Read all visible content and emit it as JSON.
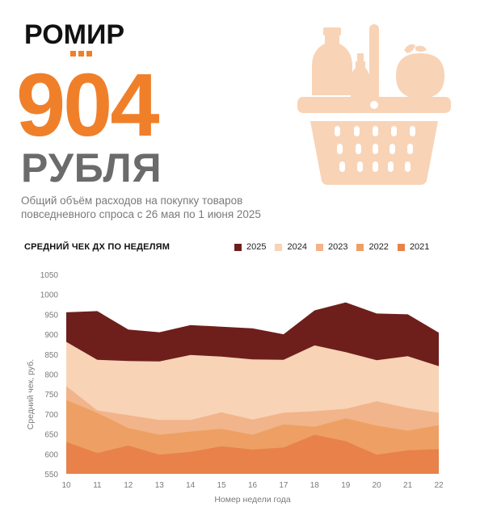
{
  "brand": {
    "logo_text": "РОМИР",
    "accent": "#f07f2a"
  },
  "headline": {
    "value": "904",
    "unit": "РУБЛЯ"
  },
  "description": {
    "line1": "Общий объём расходов на покупку товаров",
    "line2": "повседневного спроса с 26 мая по 1 июня 2025"
  },
  "illustration": {
    "icon": "shopping-basket-icon",
    "color": "#f8d3b6"
  },
  "chart_data": {
    "type": "area",
    "title": "СРЕДНИЙ ЧЕК ДХ ПО НЕДЕЛЯМ",
    "xlabel": "Номер недели года",
    "ylabel": "Средний чек, руб.",
    "x": [
      10,
      11,
      12,
      13,
      14,
      15,
      16,
      17,
      18,
      19,
      20,
      21,
      22
    ],
    "ylim": [
      550,
      1050
    ],
    "yticks": [
      550,
      600,
      650,
      700,
      750,
      800,
      850,
      900,
      950,
      1000,
      1050
    ],
    "legend_placement": "top",
    "series": [
      {
        "name": "2025",
        "color": "#6e1f1b",
        "values": [
          955,
          958,
          912,
          905,
          923,
          919,
          915,
          900,
          960,
          980,
          952,
          950,
          904
        ]
      },
      {
        "name": "2024",
        "color": "#f8d3b6",
        "values": [
          881,
          836,
          833,
          832,
          848,
          844,
          837,
          836,
          872,
          855,
          835,
          845,
          820
        ]
      },
      {
        "name": "2023",
        "color": "#f2b48a",
        "values": [
          770,
          709,
          697,
          685,
          685,
          704,
          686,
          703,
          707,
          713,
          732,
          715,
          703
        ]
      },
      {
        "name": "2022",
        "color": "#eea064",
        "values": [
          735,
          703,
          665,
          648,
          656,
          663,
          648,
          674,
          668,
          689,
          671,
          658,
          672
        ]
      },
      {
        "name": "2021",
        "color": "#e8824a",
        "values": [
          630,
          602,
          621,
          598,
          605,
          619,
          611,
          616,
          648,
          632,
          598,
          609,
          612
        ]
      }
    ]
  }
}
